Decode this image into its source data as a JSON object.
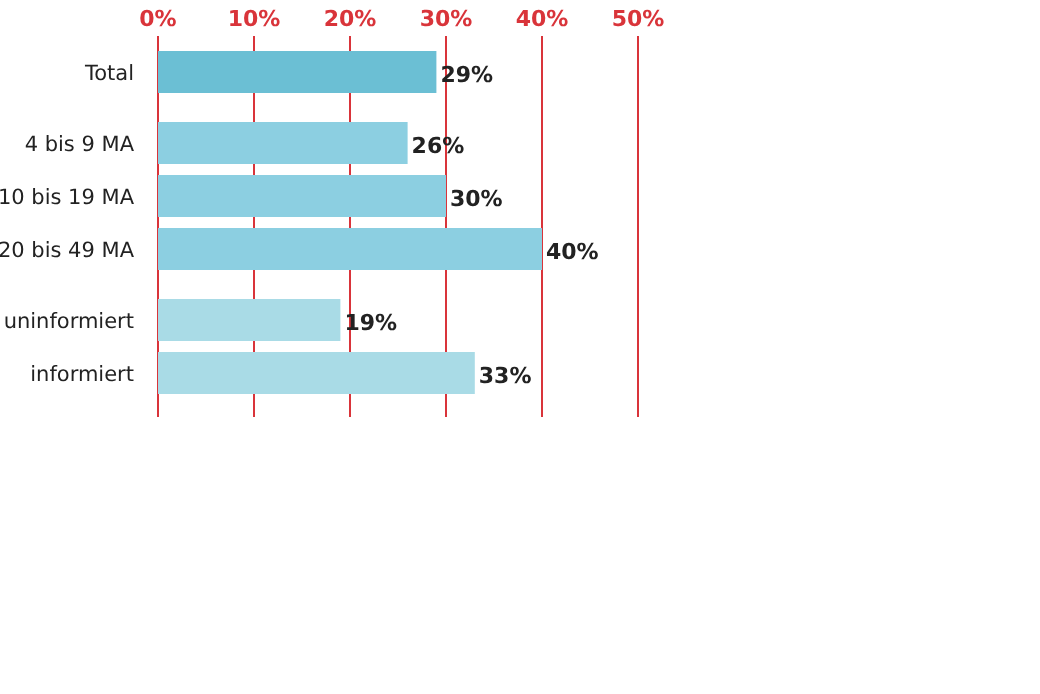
{
  "chart_data": {
    "type": "bar",
    "orientation": "horizontal",
    "categories": [
      "Total",
      "4 bis 9 MA",
      "10 bis 19 MA",
      "20 bis 49 MA",
      "uninformiert",
      "informiert"
    ],
    "values": [
      29,
      26,
      30,
      40,
      19,
      33
    ],
    "colors": [
      "#6bbfd4",
      "#8ccfe1",
      "#8ccfe1",
      "#8ccfe1",
      "#a9dbe6",
      "#a9dbe6"
    ],
    "value_labels": [
      "29%",
      "26%",
      "30%",
      "40%",
      "19%",
      "33%"
    ],
    "xlim": [
      0,
      50
    ],
    "xticks": [
      {
        "value": 0,
        "label": "0%"
      },
      {
        "value": 10,
        "label": "10%"
      },
      {
        "value": 20,
        "label": "20%"
      },
      {
        "value": 30,
        "label": "30%"
      },
      {
        "value": 40,
        "label": "40%"
      },
      {
        "value": 50,
        "label": "50%"
      }
    ],
    "grid": "x"
  }
}
